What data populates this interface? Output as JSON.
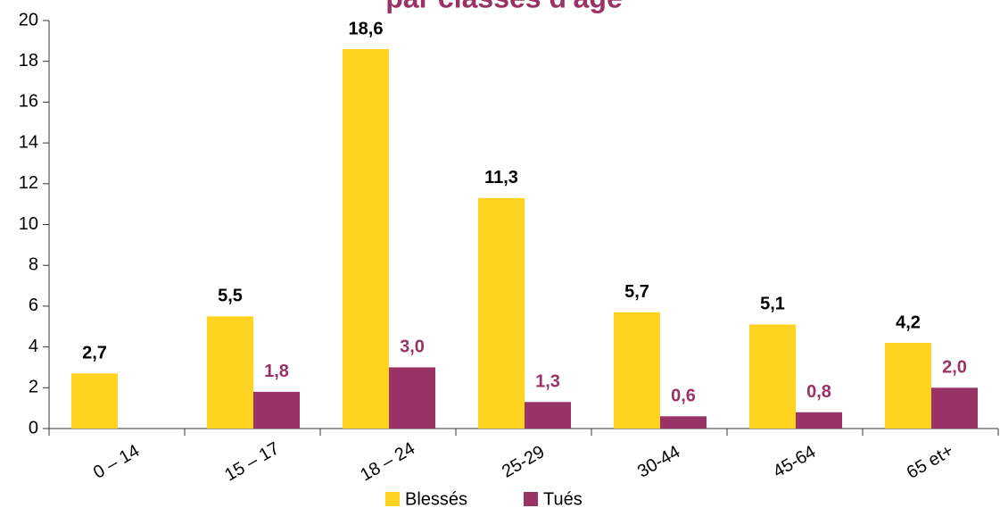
{
  "chart_data": {
    "type": "bar",
    "title": "par classes d'âge",
    "categories": [
      "0 – 14",
      "15 – 17",
      "18 – 24",
      "25-29",
      "30-44",
      "45-64",
      "65 et+"
    ],
    "series": [
      {
        "name": "Blessés",
        "color": "#ffd320",
        "label_color": "#000000",
        "values": [
          2.7,
          5.5,
          18.6,
          11.3,
          5.7,
          5.1,
          4.2
        ],
        "value_labels": [
          "2,7",
          "5,5",
          "18,6",
          "11,3",
          "5,7",
          "5,1",
          "4,2"
        ]
      },
      {
        "name": "Tués",
        "color": "#993366",
        "label_color": "#993366",
        "values": [
          null,
          1.8,
          3.0,
          1.3,
          0.6,
          0.8,
          2.0
        ],
        "value_labels": [
          null,
          "1,8",
          "3,0",
          "1,3",
          "0,6",
          "0,8",
          "2,0"
        ]
      }
    ],
    "ylim": [
      0,
      20
    ],
    "yticks": [
      0,
      2,
      4,
      6,
      8,
      10,
      12,
      14,
      16,
      18,
      20
    ],
    "grid": false
  }
}
